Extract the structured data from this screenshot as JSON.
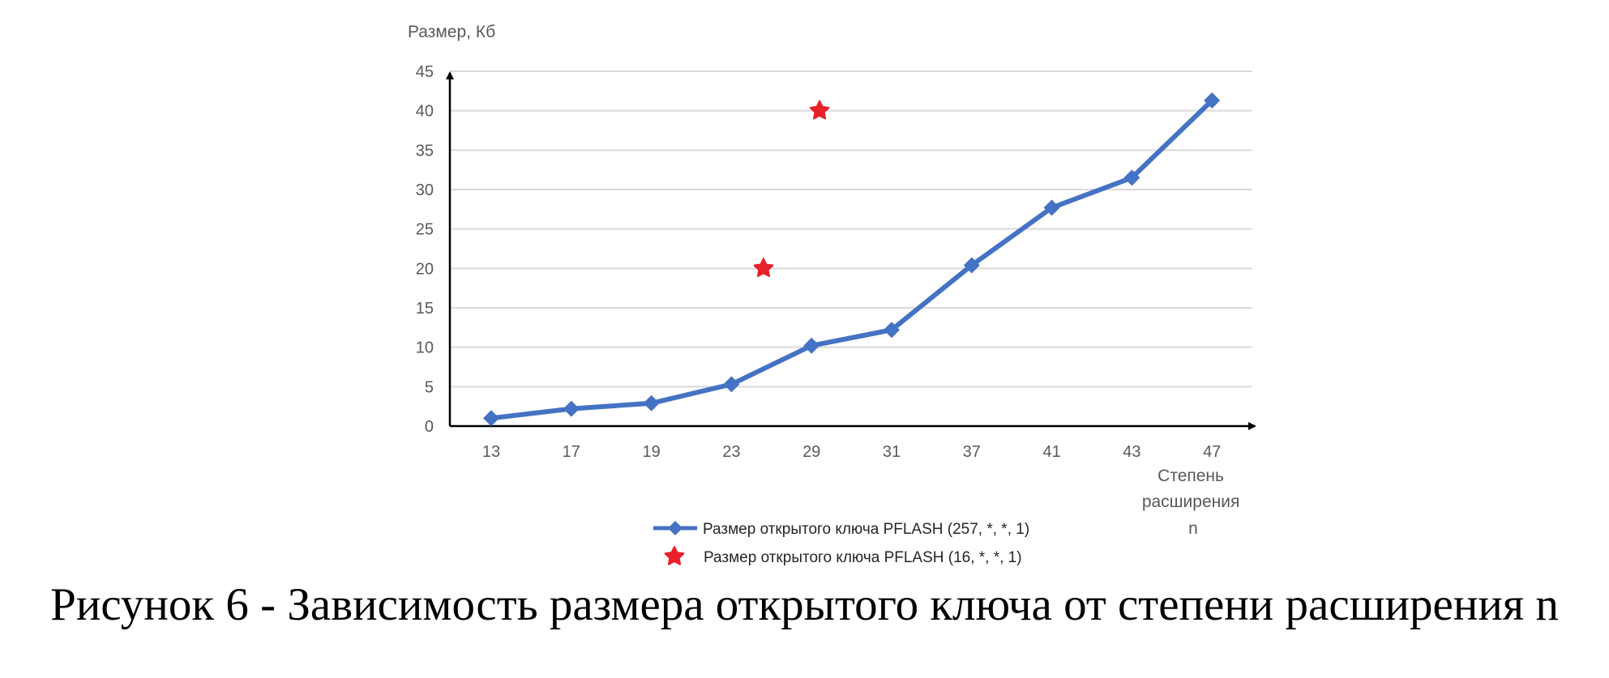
{
  "chart_data": {
    "type": "line",
    "ylabel": "Размер, Кб",
    "xlabel_lines": [
      "Степень",
      "расширения",
      "n"
    ],
    "categories": [
      "13",
      "17",
      "19",
      "23",
      "29",
      "31",
      "37",
      "41",
      "43",
      "47"
    ],
    "yticks": [
      0,
      5,
      10,
      15,
      20,
      25,
      30,
      35,
      40,
      45
    ],
    "ylim": [
      0,
      45
    ],
    "grid": "horizontal",
    "legend_position": "bottom",
    "colors": {
      "line_series": "#4472C4",
      "star_series": "#E8202A",
      "grid": "#D9D9D9",
      "axis": "#000000"
    },
    "series": [
      {
        "name": "Размер открытого ключа PFLASH (257, *, *, 1)",
        "marker": "diamond",
        "style": "line",
        "values": [
          1.0,
          2.2,
          2.9,
          5.3,
          10.2,
          12.2,
          20.4,
          27.7,
          31.5,
          41.3
        ]
      },
      {
        "name": "Размер открытого ключа PFLASH (16, *, *, 1)",
        "marker": "star",
        "style": "scatter",
        "points": [
          {
            "x_pos": 3.4,
            "y": 20
          },
          {
            "x_pos": 4.1,
            "y": 40
          }
        ]
      }
    ]
  },
  "caption": "Рисунок 6 - Зависимость размера открытого ключа от степени расширения n"
}
